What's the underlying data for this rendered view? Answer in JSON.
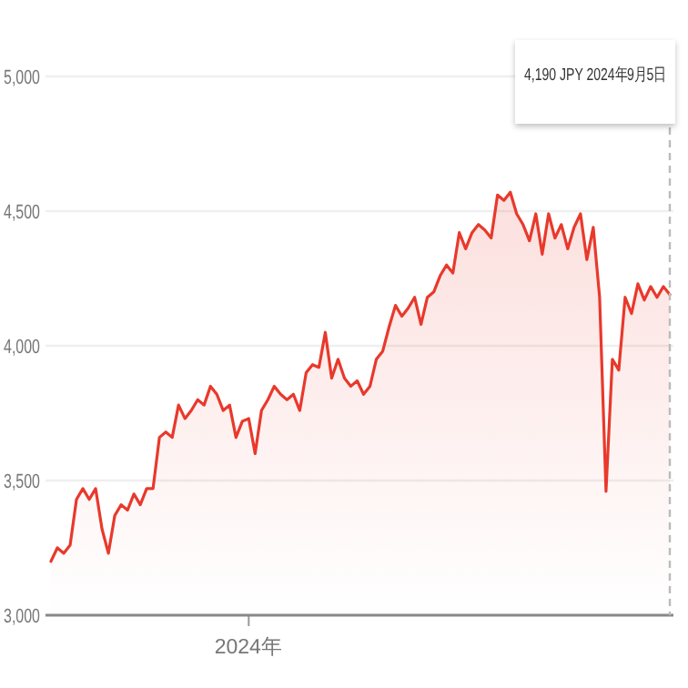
{
  "chart_data": {
    "type": "area",
    "categories": [
      null,
      null,
      null,
      null,
      null,
      null,
      null,
      null,
      null,
      null,
      null,
      null,
      null,
      null,
      null,
      null,
      null,
      null,
      null,
      null,
      null,
      null,
      null,
      null,
      null,
      null,
      null,
      null,
      null,
      null,
      null,
      "2024年",
      null,
      null,
      null,
      null,
      null,
      null,
      null,
      null,
      null,
      null,
      null,
      null,
      null,
      null,
      null,
      null,
      null,
      null,
      null,
      null,
      null,
      null,
      null,
      null,
      null,
      null,
      null,
      null,
      null,
      null,
      null,
      null,
      null,
      null,
      null,
      null,
      null,
      null,
      null,
      null,
      null,
      null,
      null,
      null,
      null,
      null,
      null,
      null,
      null,
      null,
      null,
      null,
      null,
      null,
      null,
      null,
      null,
      null,
      null,
      null,
      null,
      null,
      null,
      null,
      null,
      null
    ],
    "series": [
      {
        "color": "#e8392c",
        "values": [
          3200,
          3250,
          3230,
          3260,
          3430,
          3470,
          3430,
          3470,
          3320,
          3230,
          3370,
          3410,
          3390,
          3450,
          3410,
          3470,
          3470,
          3660,
          3680,
          3660,
          3780,
          3730,
          3760,
          3800,
          3780,
          3850,
          3820,
          3760,
          3780,
          3660,
          3720,
          3730,
          3600,
          3760,
          3800,
          3850,
          3820,
          3800,
          3820,
          3760,
          3900,
          3930,
          3920,
          4050,
          3880,
          3950,
          3880,
          3850,
          3870,
          3820,
          3850,
          3950,
          3980,
          4070,
          4150,
          4110,
          4140,
          4180,
          4080,
          4180,
          4200,
          4260,
          4300,
          4270,
          4420,
          4360,
          4420,
          4450,
          4430,
          4400,
          4560,
          4540,
          4570,
          4490,
          4450,
          4390,
          4490,
          4340,
          4490,
          4400,
          4450,
          4360,
          4440,
          4490,
          4320,
          4440,
          4180,
          3460,
          3950,
          3910,
          4180,
          4120,
          4230,
          4170,
          4220,
          4180,
          4220,
          4190
        ]
      }
    ],
    "ylim": [
      3000,
      5000
    ],
    "yticks": [
      {
        "value": 3000,
        "label": "3,000"
      },
      {
        "value": 3500,
        "label": "3,500"
      },
      {
        "value": 4000,
        "label": "4,000"
      },
      {
        "value": 4500,
        "label": "4,500"
      },
      {
        "value": 5000,
        "label": "5,000"
      }
    ],
    "grid": "y",
    "annotations": [
      "4,190 JPY  2024年9月5日"
    ]
  }
}
